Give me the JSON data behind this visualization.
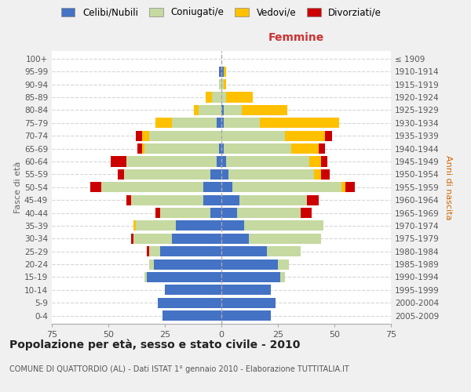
{
  "age_groups": [
    "0-4",
    "5-9",
    "10-14",
    "15-19",
    "20-24",
    "25-29",
    "30-34",
    "35-39",
    "40-44",
    "45-49",
    "50-54",
    "55-59",
    "60-64",
    "65-69",
    "70-74",
    "75-79",
    "80-84",
    "85-89",
    "90-94",
    "95-99",
    "100+"
  ],
  "birth_years": [
    "2005-2009",
    "2000-2004",
    "1995-1999",
    "1990-1994",
    "1985-1989",
    "1980-1984",
    "1975-1979",
    "1970-1974",
    "1965-1969",
    "1960-1964",
    "1955-1959",
    "1950-1954",
    "1945-1949",
    "1940-1944",
    "1935-1939",
    "1930-1934",
    "1925-1929",
    "1920-1924",
    "1915-1919",
    "1910-1914",
    "≤ 1909"
  ],
  "males": {
    "celibi": [
      26,
      28,
      25,
      33,
      30,
      27,
      22,
      20,
      5,
      8,
      8,
      5,
      2,
      1,
      0,
      2,
      0,
      0,
      0,
      1,
      0
    ],
    "coniugati": [
      0,
      0,
      0,
      1,
      2,
      5,
      17,
      18,
      22,
      32,
      45,
      38,
      40,
      33,
      32,
      20,
      10,
      4,
      1,
      0,
      0
    ],
    "vedovi": [
      0,
      0,
      0,
      0,
      0,
      0,
      0,
      1,
      0,
      0,
      0,
      0,
      0,
      1,
      3,
      7,
      2,
      3,
      0,
      0,
      0
    ],
    "divorziati": [
      0,
      0,
      0,
      0,
      0,
      1,
      1,
      0,
      2,
      2,
      5,
      3,
      7,
      2,
      3,
      0,
      0,
      0,
      0,
      0,
      0
    ]
  },
  "females": {
    "nubili": [
      22,
      24,
      22,
      26,
      25,
      20,
      12,
      10,
      7,
      8,
      5,
      3,
      2,
      1,
      0,
      1,
      1,
      0,
      0,
      1,
      0
    ],
    "coniugate": [
      0,
      0,
      0,
      2,
      5,
      15,
      32,
      35,
      28,
      30,
      48,
      38,
      37,
      30,
      28,
      16,
      8,
      2,
      1,
      0,
      0
    ],
    "vedove": [
      0,
      0,
      0,
      0,
      0,
      0,
      0,
      0,
      0,
      0,
      2,
      3,
      5,
      12,
      18,
      35,
      20,
      12,
      1,
      1,
      0
    ],
    "divorziate": [
      0,
      0,
      0,
      0,
      0,
      0,
      0,
      0,
      5,
      5,
      4,
      4,
      3,
      3,
      3,
      0,
      0,
      0,
      0,
      0,
      0
    ]
  },
  "colors": {
    "celibi": "#4472c4",
    "coniugati": "#c5d9a0",
    "vedovi": "#ffc000",
    "divorziati": "#cc0000"
  },
  "legend_labels": [
    "Celibi/Nubili",
    "Coniugati/e",
    "Vedovi/e",
    "Divorziati/e"
  ],
  "title": "Popolazione per età, sesso e stato civile - 2010",
  "subtitle": "COMUNE DI QUATTORDIO (AL) - Dati ISTAT 1° gennaio 2010 - Elaborazione TUTTITALIA.IT",
  "xlabel_right": "Femmine",
  "ylabel_left": "Fasce di età",
  "ylabel_right": "Anni di nascita",
  "xlim": 75,
  "bg_color": "#f0f0f0",
  "plot_bg": "#ffffff",
  "grid_color": "#cccccc"
}
